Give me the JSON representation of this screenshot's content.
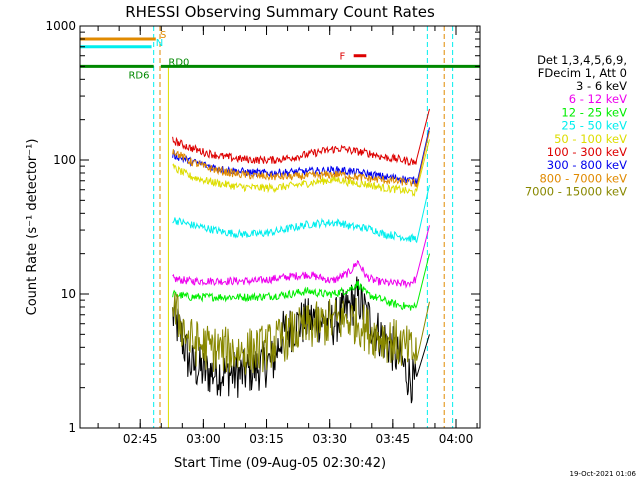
{
  "chart_data": {
    "type": "line",
    "title": "RHESSI Observing Summary Count Rates",
    "xlabel": "Start Time (09-Aug-05 02:30:42)",
    "ylabel": "Count Rate (s⁻¹ detector⁻¹)",
    "yscale": "log",
    "ylim": [
      1,
      1000
    ],
    "xlim_minutes": [
      0,
      95
    ],
    "x_ticks": [
      "02:45",
      "03:00",
      "03:15",
      "03:30",
      "03:45",
      "04:00"
    ],
    "x_tick_minutes": [
      14.3,
      29.3,
      44.3,
      59.3,
      74.3,
      89.3
    ],
    "y_ticks": [
      "1",
      "10",
      "100",
      "1000"
    ],
    "y_tick_values": [
      1,
      10,
      100,
      1000
    ],
    "legend_header": [
      "Det 1,3,4,5,6,9,",
      "FDecim 1, Att 0"
    ],
    "legend_placement": "right",
    "timestamp": "19-Oct-2021 01:06",
    "data_window_minutes": [
      22,
      80
    ],
    "series": [
      {
        "name": "3 - 6 keV",
        "color": "#000000",
        "points": [
          [
            22,
            7
          ],
          [
            24,
            5
          ],
          [
            26,
            3
          ],
          [
            30,
            2.6
          ],
          [
            34,
            2.6
          ],
          [
            38,
            2.5
          ],
          [
            42,
            2.8
          ],
          [
            46,
            3.2
          ],
          [
            48,
            5
          ],
          [
            52,
            6
          ],
          [
            56,
            6.5
          ],
          [
            60,
            6
          ],
          [
            64,
            8
          ],
          [
            66,
            9.5
          ],
          [
            68,
            7
          ],
          [
            70,
            5.5
          ],
          [
            74,
            4
          ],
          [
            78,
            2.5
          ],
          [
            80,
            2
          ]
        ]
      },
      {
        "name": "6 - 12 keV",
        "color": "#ee00ee",
        "points": [
          [
            22,
            13
          ],
          [
            26,
            12.5
          ],
          [
            30,
            12.5
          ],
          [
            34,
            12.5
          ],
          [
            38,
            12.5
          ],
          [
            42,
            12.5
          ],
          [
            46,
            13
          ],
          [
            50,
            13.5
          ],
          [
            54,
            14
          ],
          [
            58,
            13
          ],
          [
            60,
            12.5
          ],
          [
            64,
            14.5
          ],
          [
            66,
            17.5
          ],
          [
            68,
            13.5
          ],
          [
            70,
            12.5
          ],
          [
            74,
            12
          ],
          [
            78,
            12
          ],
          [
            80,
            13
          ]
        ]
      },
      {
        "name": "12 - 25 keV",
        "color": "#00ee00",
        "points": [
          [
            22,
            10
          ],
          [
            26,
            9.5
          ],
          [
            30,
            9.5
          ],
          [
            34,
            9.5
          ],
          [
            38,
            9.5
          ],
          [
            42,
            9.5
          ],
          [
            46,
            9.7
          ],
          [
            50,
            10
          ],
          [
            54,
            10.5
          ],
          [
            58,
            10
          ],
          [
            60,
            10
          ],
          [
            64,
            10.8
          ],
          [
            66,
            12
          ],
          [
            68,
            10
          ],
          [
            70,
            9.5
          ],
          [
            74,
            8.5
          ],
          [
            78,
            8
          ],
          [
            80,
            8
          ]
        ]
      },
      {
        "name": "25 - 50 keV",
        "color": "#00eeee",
        "points": [
          [
            22,
            36
          ],
          [
            26,
            33
          ],
          [
            30,
            31
          ],
          [
            34,
            29
          ],
          [
            38,
            28
          ],
          [
            42,
            28
          ],
          [
            46,
            29
          ],
          [
            50,
            31
          ],
          [
            54,
            33
          ],
          [
            58,
            34
          ],
          [
            60,
            34
          ],
          [
            62,
            34
          ],
          [
            64,
            32
          ],
          [
            68,
            31
          ],
          [
            70,
            30
          ],
          [
            72,
            28
          ],
          [
            76,
            27
          ],
          [
            78,
            26
          ],
          [
            80,
            26
          ]
        ]
      },
      {
        "name": "50 - 100 keV",
        "color": "#dddd00",
        "points": [
          [
            22,
            88
          ],
          [
            26,
            76
          ],
          [
            30,
            70
          ],
          [
            34,
            66
          ],
          [
            38,
            63
          ],
          [
            42,
            62
          ],
          [
            46,
            62
          ],
          [
            50,
            64
          ],
          [
            54,
            67
          ],
          [
            58,
            70
          ],
          [
            60,
            71
          ],
          [
            62,
            71
          ],
          [
            64,
            68
          ],
          [
            68,
            66
          ],
          [
            70,
            64
          ],
          [
            72,
            62
          ],
          [
            76,
            60
          ],
          [
            78,
            58
          ],
          [
            80,
            57
          ]
        ]
      },
      {
        "name": "100 - 300 keV",
        "color": "#dd0000",
        "points": [
          [
            22,
            140
          ],
          [
            26,
            124
          ],
          [
            30,
            113
          ],
          [
            34,
            106
          ],
          [
            38,
            102
          ],
          [
            42,
            100
          ],
          [
            46,
            100
          ],
          [
            50,
            104
          ],
          [
            54,
            110
          ],
          [
            58,
            117
          ],
          [
            60,
            120
          ],
          [
            62,
            122
          ],
          [
            64,
            118
          ],
          [
            68,
            113
          ],
          [
            70,
            110
          ],
          [
            72,
            105
          ],
          [
            76,
            101
          ],
          [
            78,
            98
          ],
          [
            80,
            96
          ]
        ]
      },
      {
        "name": "300 - 800 keV",
        "color": "#0000ee",
        "points": [
          [
            22,
            110
          ],
          [
            26,
            98
          ],
          [
            30,
            91
          ],
          [
            34,
            85
          ],
          [
            38,
            82
          ],
          [
            42,
            80
          ],
          [
            46,
            80
          ],
          [
            50,
            81
          ],
          [
            54,
            82
          ],
          [
            58,
            83
          ],
          [
            60,
            84
          ],
          [
            62,
            84
          ],
          [
            64,
            82
          ],
          [
            68,
            79
          ],
          [
            70,
            77
          ],
          [
            72,
            75
          ],
          [
            76,
            73
          ],
          [
            78,
            71
          ],
          [
            80,
            70
          ]
        ]
      },
      {
        "name": "800 - 7000 keV",
        "color": "#e08a00",
        "points": [
          [
            22,
            118
          ],
          [
            26,
            98
          ],
          [
            30,
            88
          ],
          [
            34,
            82
          ],
          [
            38,
            78
          ],
          [
            42,
            76
          ],
          [
            46,
            75
          ],
          [
            50,
            75
          ],
          [
            54,
            76
          ],
          [
            58,
            77
          ],
          [
            60,
            78
          ],
          [
            62,
            78
          ],
          [
            64,
            76
          ],
          [
            68,
            73
          ],
          [
            70,
            72
          ],
          [
            72,
            71
          ],
          [
            76,
            69
          ],
          [
            78,
            68
          ],
          [
            80,
            66
          ]
        ]
      },
      {
        "name": "7000 - 15000 keV",
        "color": "#888800",
        "points": [
          [
            22,
            8
          ],
          [
            24,
            6
          ],
          [
            26,
            4.5
          ],
          [
            30,
            4
          ],
          [
            34,
            3.8
          ],
          [
            38,
            3.7
          ],
          [
            42,
            3.8
          ],
          [
            46,
            4.2
          ],
          [
            50,
            5
          ],
          [
            54,
            5.6
          ],
          [
            58,
            6
          ],
          [
            60,
            6.3
          ],
          [
            64,
            6.5
          ],
          [
            66,
            6.2
          ],
          [
            68,
            5.5
          ],
          [
            70,
            5
          ],
          [
            74,
            4.5
          ],
          [
            78,
            3.8
          ],
          [
            80,
            3.5
          ]
        ]
      }
    ],
    "state_bars": [
      {
        "label": "S",
        "color": "#e08a00",
        "y": 800,
        "x0": 0,
        "x1": 18,
        "label_x": 19,
        "label_side": "right"
      },
      {
        "label": "N",
        "color": "#00eeee",
        "y": 700,
        "x0": 0,
        "x1": 17,
        "label_x": 18,
        "label_side": "right"
      },
      {
        "label": "RD6",
        "color": "#008800",
        "y": 500,
        "x0": 0,
        "x1": 17.5,
        "label_x": 16.5,
        "label_side": "left-below"
      },
      {
        "label": "RD0",
        "color": "#008800",
        "y": 500,
        "x0": 19.2,
        "x1": 95,
        "label_x": 21,
        "label_side": "right"
      },
      {
        "label": "F",
        "color": "#dd0000",
        "y": 600,
        "x0": 65,
        "x1": 68,
        "label_x": 63,
        "label_side": "left"
      }
    ]
  }
}
